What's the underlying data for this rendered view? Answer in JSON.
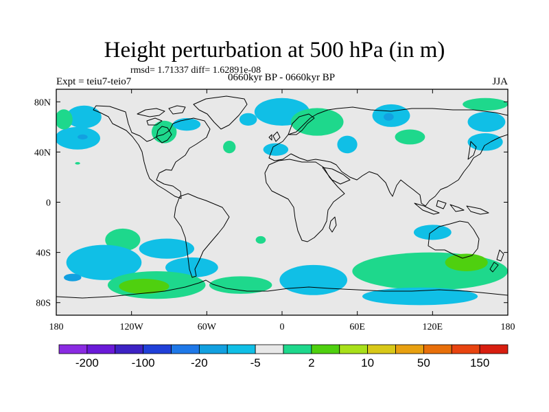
{
  "title": "Height perturbation at 500 hPa (in m)",
  "stats": "rmsd= 1.71337 diff= 1.62891e-08",
  "experiment": "Expt = teiu7-teio7",
  "period": "0660kyr BP - 0660kyr BP",
  "season": "JJA",
  "map": {
    "projection": "cylindrical-equidistant",
    "lon_range": [
      -180,
      180
    ],
    "lat_range": [
      -90,
      90
    ],
    "background_color": "#e8e8e8",
    "x_ticks": [
      {
        "lon": -180,
        "label": "180"
      },
      {
        "lon": -120,
        "label": "120W"
      },
      {
        "lon": -60,
        "label": "60W"
      },
      {
        "lon": 0,
        "label": "0"
      },
      {
        "lon": 60,
        "label": "60E"
      },
      {
        "lon": 120,
        "label": "120E"
      },
      {
        "lon": 180,
        "label": "180"
      }
    ],
    "y_ticks": [
      {
        "lat": 80,
        "label": "80N"
      },
      {
        "lat": 40,
        "label": "40N"
      },
      {
        "lat": 0,
        "label": "0"
      },
      {
        "lat": -40,
        "label": "40S"
      },
      {
        "lat": -80,
        "label": "80S"
      }
    ],
    "anomalies": [
      {
        "name": "n-pacific-east-low",
        "lon": -158,
        "lat": 68,
        "rlon": 14,
        "rlat": 9,
        "level": -5
      },
      {
        "name": "n-pacific-low",
        "lon": -163,
        "lat": 51,
        "rlon": 18,
        "rlat": 9,
        "level": -5
      },
      {
        "name": "n-pacific-low-core",
        "lon": -159,
        "lat": 52,
        "rlon": 4,
        "rlat": 2,
        "level": -20
      },
      {
        "name": "w-pacific-high",
        "lon": -174,
        "lat": 66,
        "rlon": 7,
        "rlat": 8,
        "level": 2
      },
      {
        "name": "hudson-high",
        "lon": -94,
        "lat": 56,
        "rlon": 10,
        "rlat": 9,
        "level": 2
      },
      {
        "name": "canada-low",
        "lon": -76,
        "lat": 62,
        "rlon": 11,
        "rlat": 5,
        "level": -5
      },
      {
        "name": "atlantic-high",
        "lon": -42,
        "lat": 44,
        "rlon": 5,
        "rlat": 5,
        "level": 2
      },
      {
        "name": "greenland-low",
        "lon": -27,
        "lat": 66,
        "rlon": 7,
        "rlat": 5,
        "level": -5
      },
      {
        "name": "scandinavia-low",
        "lon": 0,
        "lat": 72,
        "rlon": 22,
        "rlat": 11,
        "level": -5
      },
      {
        "name": "europe-high",
        "lon": 28,
        "lat": 64,
        "rlon": 21,
        "rlat": 11,
        "level": 2
      },
      {
        "name": "iberia-low",
        "lon": -5,
        "lat": 42,
        "rlon": 10,
        "rlat": 5,
        "level": -5
      },
      {
        "name": "caspian-low",
        "lon": 52,
        "lat": 46,
        "rlon": 8,
        "rlat": 7,
        "level": -5
      },
      {
        "name": "siberia-low",
        "lon": 87,
        "lat": 69,
        "rlon": 15,
        "rlat": 9,
        "level": -5
      },
      {
        "name": "siberia-low-core",
        "lon": 85,
        "lat": 68,
        "rlon": 4,
        "rlat": 3,
        "level": -20
      },
      {
        "name": "mongolia-high",
        "lon": 102,
        "lat": 52,
        "rlon": 12,
        "rlat": 6,
        "level": 2
      },
      {
        "name": "e-siberia-high",
        "lon": 162,
        "lat": 78,
        "rlon": 18,
        "rlat": 5,
        "level": 2
      },
      {
        "name": "e-siberia-low",
        "lon": 163,
        "lat": 64,
        "rlon": 15,
        "rlat": 8,
        "level": -5
      },
      {
        "name": "kamchatka-low",
        "lon": 162,
        "lat": 48,
        "rlon": 14,
        "rlat": 7,
        "level": -5
      },
      {
        "name": "pacific-small-high",
        "lon": -163,
        "lat": 31,
        "rlon": 2,
        "rlat": 1,
        "level": 2
      },
      {
        "name": "se-pacific-high",
        "lon": -127,
        "lat": -30,
        "rlon": 14,
        "rlat": 9,
        "level": 2
      },
      {
        "name": "s-pacific-low",
        "lon": -142,
        "lat": -48,
        "rlon": 30,
        "rlat": 14,
        "level": -5
      },
      {
        "name": "s-pacific-low-core",
        "lon": -167,
        "lat": -60,
        "rlon": 7,
        "rlat": 3,
        "level": -20
      },
      {
        "name": "chile-low",
        "lon": -92,
        "lat": -37,
        "rlon": 22,
        "rlat": 8,
        "level": -5
      },
      {
        "name": "s-atlantic-small-high",
        "lon": -17,
        "lat": -30,
        "rlon": 4,
        "rlat": 3,
        "level": 2
      },
      {
        "name": "drake-low",
        "lon": -72,
        "lat": -52,
        "rlon": 21,
        "rlat": 8,
        "level": -5
      },
      {
        "name": "amundsen-high",
        "lon": -100,
        "lat": -66,
        "rlon": 39,
        "rlat": 11,
        "level": 2
      },
      {
        "name": "amundsen-high-core",
        "lon": -110,
        "lat": -67,
        "rlon": 20,
        "rlat": 6,
        "level": 10
      },
      {
        "name": "weddell-high",
        "lon": -33,
        "lat": -66,
        "rlon": 25,
        "rlat": 7,
        "level": 2
      },
      {
        "name": "s-atlantic-low",
        "lon": 25,
        "lat": -62,
        "rlon": 27,
        "rlat": 12,
        "level": -5
      },
      {
        "name": "australia-low",
        "lon": 120,
        "lat": -24,
        "rlon": 15,
        "rlat": 6,
        "level": -5
      },
      {
        "name": "s-indian-high",
        "lon": 118,
        "lat": -55,
        "rlon": 62,
        "rlat": 15,
        "level": 2
      },
      {
        "name": "tasman-high-core",
        "lon": 147,
        "lat": -48,
        "rlon": 17,
        "rlat": 7,
        "level": 10
      },
      {
        "name": "antarctic-low",
        "lon": 110,
        "lat": -75,
        "rlon": 46,
        "rlat": 7,
        "level": -5
      }
    ]
  },
  "colorbar": {
    "colors": [
      "#8a2be2",
      "#6a1ad8",
      "#3d22c4",
      "#2040d8",
      "#1e78e8",
      "#12a0e0",
      "#10bfe6",
      "#e8e8e8",
      "#1ed88c",
      "#4fd00f",
      "#a8e01a",
      "#d8c818",
      "#e8a010",
      "#e86f0a",
      "#e84410",
      "#d81e10"
    ],
    "labels": [
      "-200",
      "-100",
      "-20",
      "-5",
      "2",
      "10",
      "50",
      "150"
    ],
    "level_colors": {
      "-20": "#12a0e0",
      "-5": "#10bfe6",
      "2": "#1ed88c",
      "10": "#4fd00f"
    }
  }
}
